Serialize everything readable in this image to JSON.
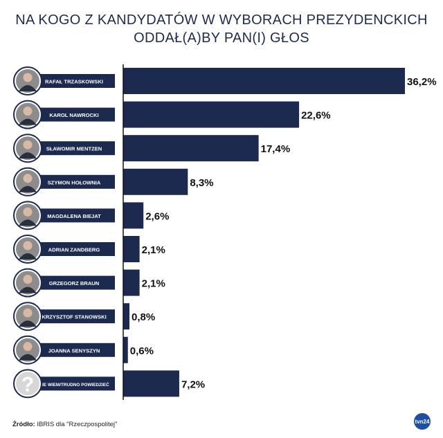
{
  "title": {
    "line1": "NA KOGO Z KANDYDATÓW W WYBORACH PREZYDENCKICH",
    "line2": "ODDAŁ(A)BY PAN(I) GŁOS"
  },
  "colors": {
    "bar": "#1b2a4e",
    "label_bg": "#1b2a4e",
    "title": "#1f2a4d"
  },
  "chart_data": {
    "type": "bar",
    "orientation": "horizontal",
    "title": "NA KOGO Z KANDYDATÓW W WYBORACH PREZYDENCKICH ODDAŁ(A)BY PAN(I) GŁOS",
    "categories": [
      "RAFAŁ TRZASKOWSKI",
      "KAROL NAWROCKI",
      "SŁAWOMIR MENTZEN",
      "SZYMON HOŁOWNIA",
      "MAGDALENA BIEJAT",
      "ADRIAN ZANDBERG",
      "GRZEGORZ BRAUN",
      "KRZYSZTOF STANOWSKI",
      "JOANNA SENYSZYN",
      "NIE WIEM/TRUDNO POWIEDZIEĆ"
    ],
    "values": [
      36.2,
      22.6,
      17.4,
      8.3,
      2.6,
      2.1,
      2.1,
      0.8,
      0.6,
      7.2
    ],
    "value_labels": [
      "36,2%",
      "22,6%",
      "17,4%",
      "8,3%",
      "2,6%",
      "2,1%",
      "2,1%",
      "0,8%",
      "0,6%",
      "7,2%"
    ],
    "xlim": [
      0,
      36.2
    ],
    "grid": false,
    "legend": "none"
  },
  "footer": {
    "source_label": "Źródło:",
    "source_text": " IBRIS dla \"Rzeczpospolitej\"",
    "logo_text": "tvn24"
  }
}
